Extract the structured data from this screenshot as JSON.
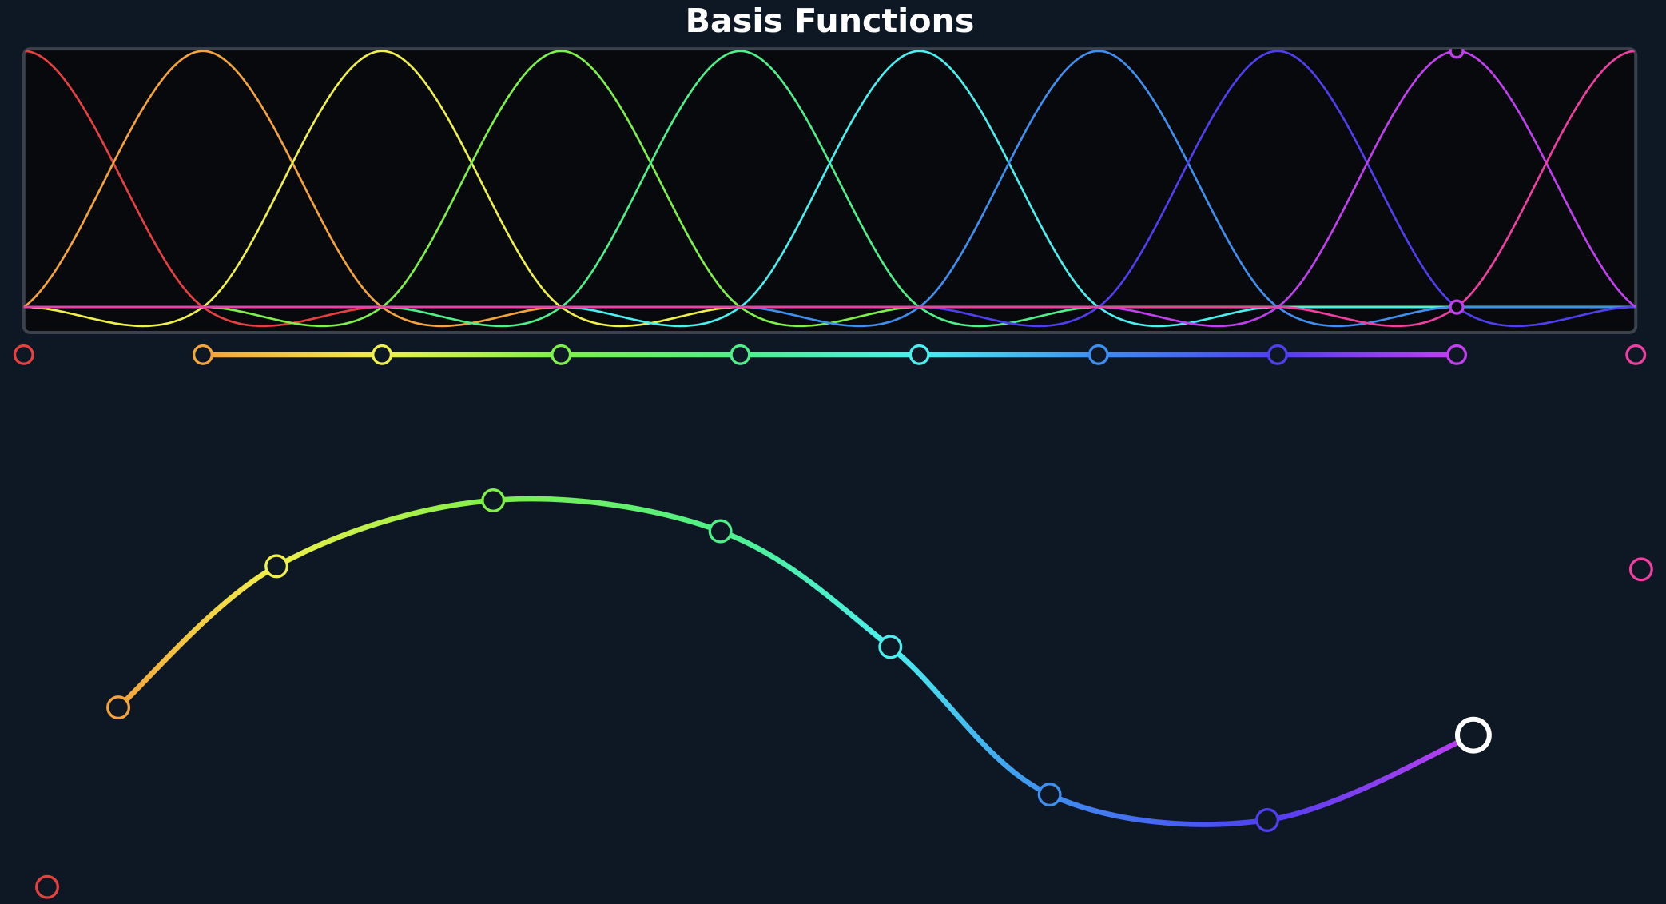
{
  "title": "Basis Functions"
}
